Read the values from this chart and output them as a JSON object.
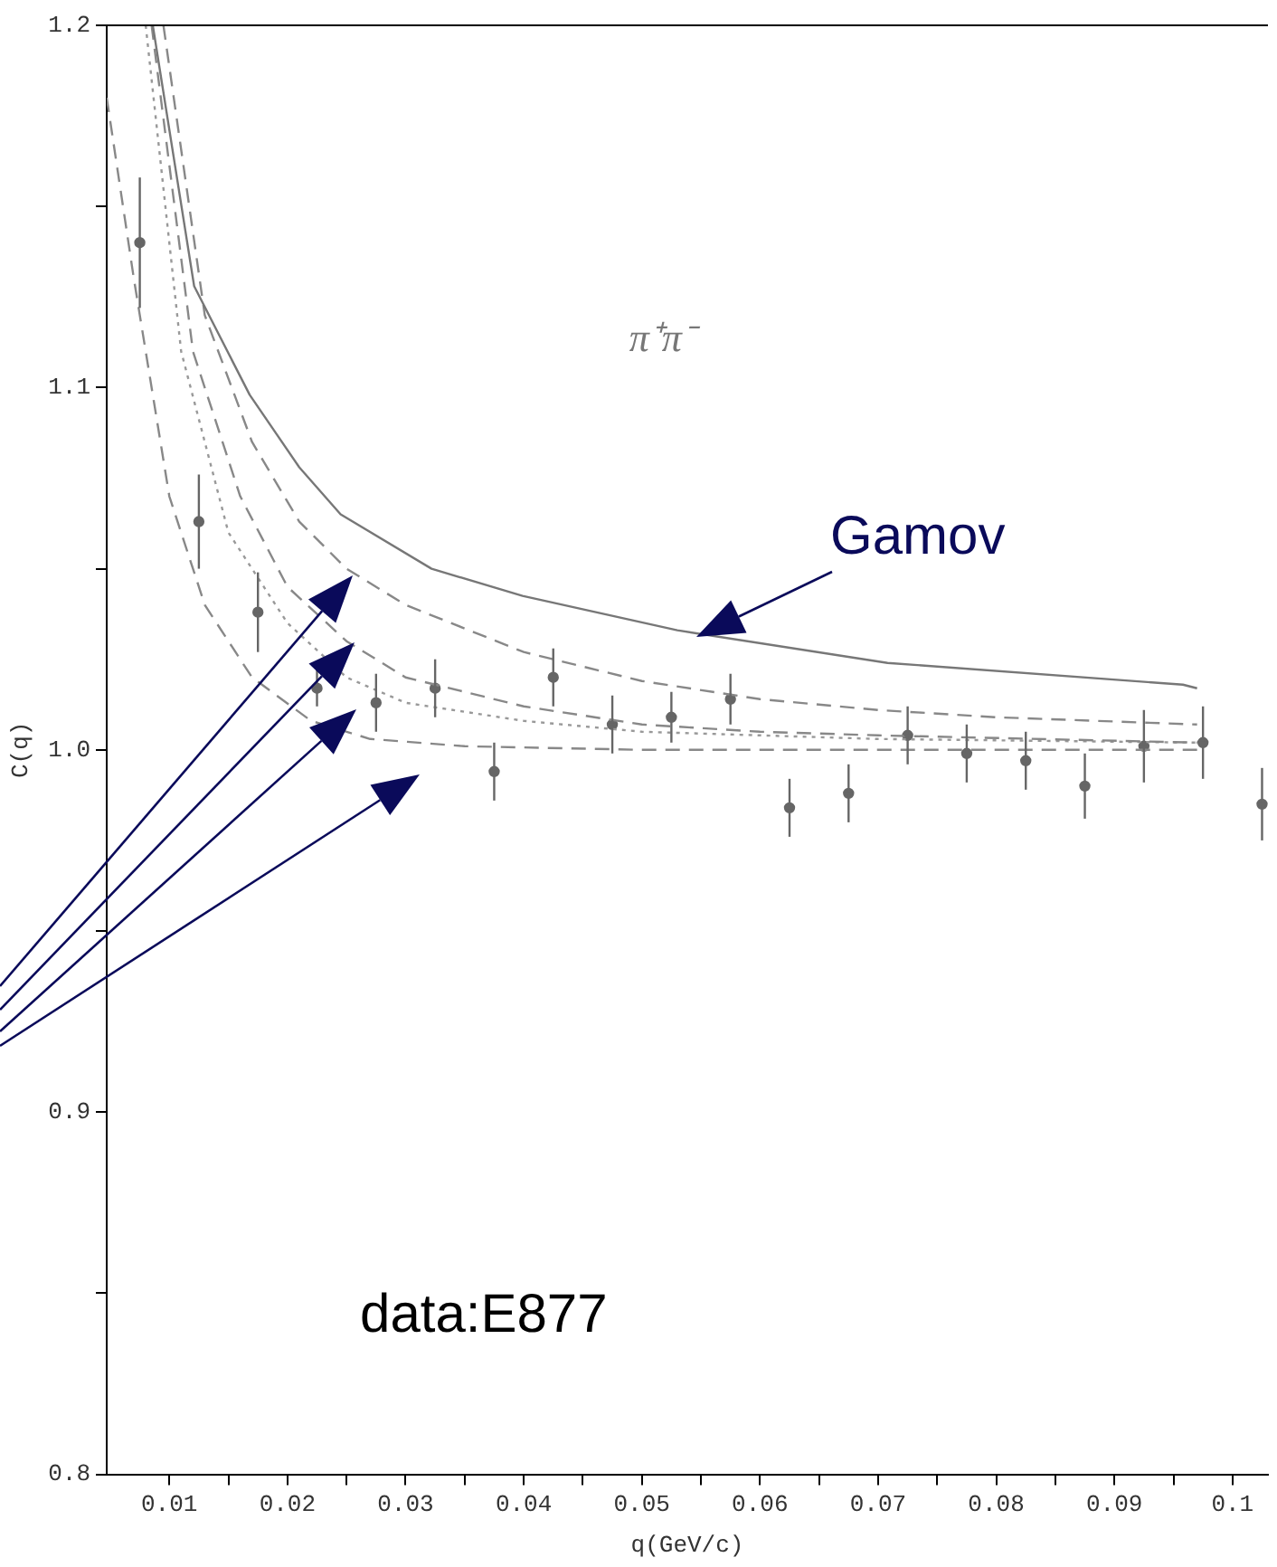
{
  "chart_data": {
    "type": "line",
    "xlabel": "q(GeV/c)",
    "ylabel": "C(q)",
    "annotations": [
      "π⁺π⁻",
      "Gamov",
      "data:E877"
    ],
    "xlim": [
      0.0047,
      0.103
    ],
    "ylim": [
      0.8,
      1.2
    ],
    "xticks": [
      0.01,
      {
        "value": 0.015,
        "label": null
      },
      0.02,
      {
        "value": 0.025,
        "label": null
      },
      0.03,
      {
        "value": 0.035,
        "label": null
      },
      0.04,
      {
        "value": 0.045,
        "label": null
      },
      0.05,
      {
        "value": 0.055,
        "label": null
      },
      0.06,
      {
        "value": 0.065,
        "label": null
      },
      0.07,
      {
        "value": 0.075,
        "label": null
      },
      0.08,
      {
        "value": 0.085,
        "label": null
      },
      0.09,
      {
        "value": 0.095,
        "label": null
      },
      0.1
    ],
    "yticks": [
      0.8,
      {
        "value": 0.85,
        "label": null
      },
      0.9,
      {
        "value": 0.95,
        "label": null
      },
      {
        "value": 1,
        "label": "1.0"
      },
      {
        "value": 1.05,
        "label": null
      },
      1.1,
      {
        "value": 1.15,
        "label": null
      },
      1.2
    ],
    "grid": false,
    "legend": false,
    "series": [
      {
        "type": "line",
        "color": "#777777",
        "line_style": "solid",
        "marker": "none",
        "x": [
          0.0086,
          0.0121,
          0.0168,
          0.021,
          0.0245,
          0.0322,
          0.0399,
          0.053,
          0.0708,
          0.0958,
          0.097
        ],
        "values": [
          1.2,
          1.128,
          1.098,
          1.078,
          1.065,
          1.05,
          1.0425,
          1.033,
          1.024,
          1.018,
          1.017
        ]
      },
      {
        "type": "line",
        "color": "#888888",
        "line_style": "dashed",
        "marker": "none",
        "x": [
          0.0095,
          0.013,
          0.017,
          0.021,
          0.025,
          0.03,
          0.04,
          0.05,
          0.06,
          0.07,
          0.08,
          0.097
        ],
        "values": [
          1.2,
          1.12,
          1.085,
          1.063,
          1.05,
          1.04,
          1.027,
          1.019,
          1.014,
          1.011,
          1.009,
          1.007
        ]
      },
      {
        "type": "line",
        "color": "#888888",
        "line_style": "dashed",
        "marker": "none",
        "x": [
          0.0085,
          0.012,
          0.016,
          0.02,
          0.025,
          0.03,
          0.04,
          0.05,
          0.06,
          0.07,
          0.097
        ],
        "values": [
          1.2,
          1.11,
          1.07,
          1.045,
          1.03,
          1.02,
          1.012,
          1.007,
          1.005,
          1.004,
          1.002
        ]
      },
      {
        "type": "line",
        "color": "#999999",
        "line_style": "dotted",
        "marker": "none",
        "x": [
          0.008,
          0.011,
          0.015,
          0.02,
          0.025,
          0.03,
          0.04,
          0.05,
          0.07,
          0.097
        ],
        "values": [
          1.2,
          1.11,
          1.06,
          1.035,
          1.02,
          1.013,
          1.008,
          1.005,
          1.003,
          1.002
        ]
      },
      {
        "type": "line",
        "color": "#888888",
        "line_style": "dashed",
        "marker": "none",
        "x": [
          0.0047,
          0.007,
          0.01,
          0.013,
          0.017,
          0.022,
          0.027,
          0.035,
          0.05,
          0.097
        ],
        "values": [
          1.18,
          1.13,
          1.07,
          1.04,
          1.02,
          1.008,
          1.003,
          1.001,
          1.0,
          1.0
        ]
      },
      {
        "type": "scatter",
        "color": "#666666",
        "marker": "circle",
        "x": [
          0.0075,
          0.0125,
          0.0175,
          0.0225,
          0.0275,
          0.0325,
          0.0375,
          0.0425,
          0.0475,
          0.0525,
          0.0575,
          0.0625,
          0.0675,
          0.0725,
          0.0775,
          0.0825,
          0.0875,
          0.0925,
          0.0975,
          0.1025
        ],
        "values": [
          1.14,
          1.063,
          1.038,
          1.017,
          1.013,
          1.017,
          0.994,
          1.02,
          1.007,
          1.009,
          1.014,
          0.984,
          0.988,
          1.004,
          0.999,
          0.997,
          0.99,
          1.001,
          1.002,
          0.985
        ],
        "errors": [
          0.018,
          0.013,
          0.011,
          0.005,
          0.008,
          0.008,
          0.008,
          0.008,
          0.008,
          0.007,
          0.007,
          0.008,
          0.008,
          0.008,
          0.008,
          0.008,
          0.009,
          0.01,
          0.01,
          0.01
        ]
      }
    ]
  }
}
